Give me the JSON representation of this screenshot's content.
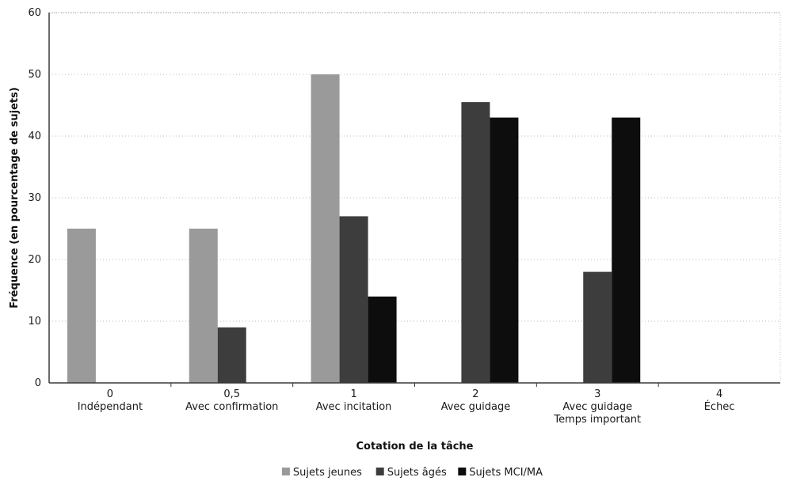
{
  "chart_data": {
    "type": "bar",
    "title": "",
    "xlabel": "Cotation de la tâche",
    "ylabel": "Fréquence (en pourcentage de sujets)",
    "ylim": [
      0,
      60
    ],
    "yticks": [
      0,
      10,
      20,
      30,
      40,
      50,
      60
    ],
    "grid": true,
    "legend_position": "bottom",
    "categories": [
      [
        "0",
        "Indépendant"
      ],
      [
        "0,5",
        "Avec confirmation"
      ],
      [
        "1",
        "Avec incitation"
      ],
      [
        "2",
        "Avec guidage"
      ],
      [
        "3",
        "Avec guidage",
        "Temps important"
      ],
      [
        "4",
        "Échec"
      ]
    ],
    "series": [
      {
        "name": "Sujets jeunes",
        "color": "#9a9a9a",
        "values": [
          25,
          25,
          50,
          0,
          0,
          0
        ]
      },
      {
        "name": "Sujets âgés",
        "color": "#3d3d3d",
        "values": [
          0,
          9,
          27,
          45.5,
          18,
          0
        ]
      },
      {
        "name": "Sujets MCI/MA",
        "color": "#0d0d0d",
        "values": [
          0,
          0,
          14,
          43,
          43,
          0
        ]
      }
    ]
  }
}
